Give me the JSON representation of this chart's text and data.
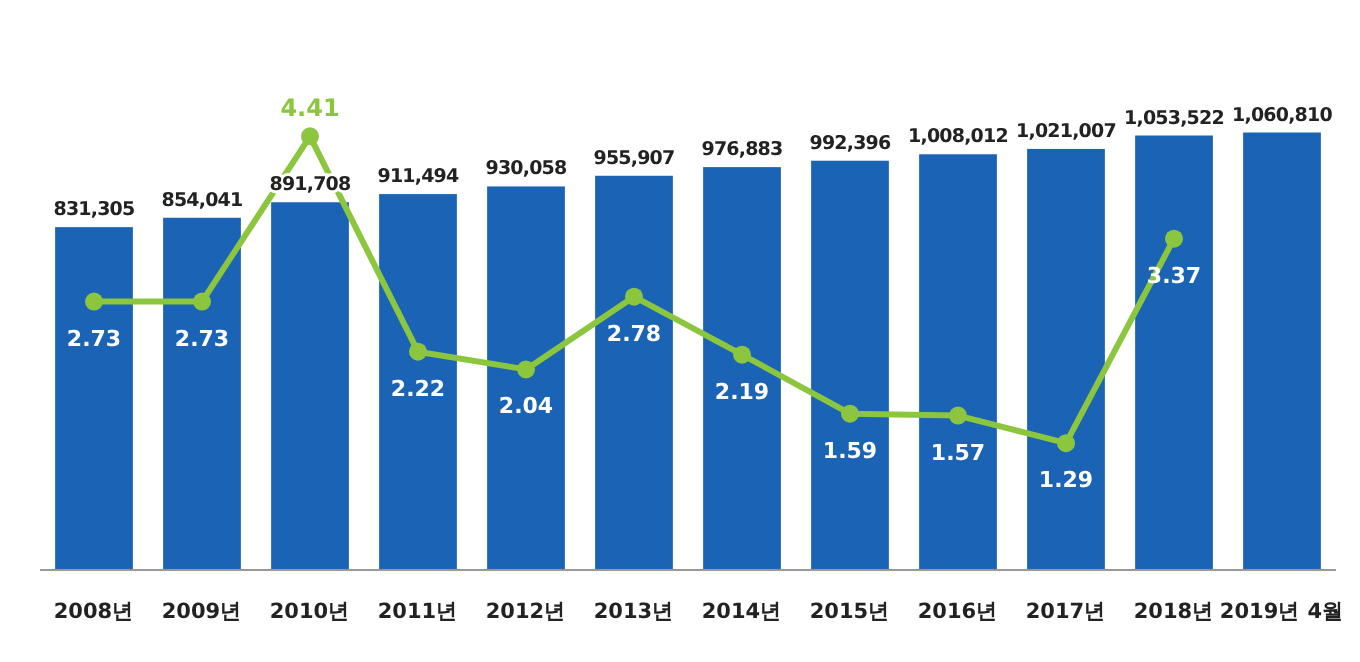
{
  "chart_data": {
    "type": "bar",
    "categories": [
      "2008년",
      "2009년",
      "2010년",
      "2011년",
      "2012년",
      "2013년",
      "2014년",
      "2015년",
      "2016년",
      "2017년",
      "2018년",
      "2019년 4월"
    ],
    "series": [
      {
        "color": "#1a63b5",
        "values": [
          831305,
          854041,
          891708,
          911494,
          930058,
          955907,
          976883,
          992396,
          1008012,
          1021007,
          1053522,
          1060810
        ],
        "value_labels": [
          "831,305",
          "854,041",
          "891,708",
          "911,494",
          "930,058",
          "955,907",
          "976,883",
          "992,396",
          "1,008,012",
          "1,021,007",
          "1,053,522",
          "1,060,810"
        ]
      },
      {
        "type": "line",
        "axis": "y2",
        "color": "#8cc63f",
        "values": [
          2.73,
          2.73,
          4.41,
          2.22,
          2.04,
          2.78,
          2.19,
          1.59,
          1.57,
          1.29,
          3.37,
          null
        ]
      }
    ],
    "data_labels": true,
    "marker": "circle"
  }
}
